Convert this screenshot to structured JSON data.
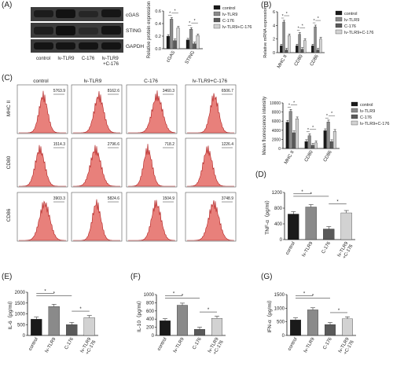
{
  "panels": {
    "A": "(A)",
    "B": "(B)",
    "C": "(C)",
    "D": "(D)",
    "E": "(E)",
    "F": "(F)",
    "G": "(G)"
  },
  "blot": {
    "rows": [
      "cGAS",
      "STING",
      "GAPDH"
    ],
    "lanes": [
      "control",
      "lv-TLR9",
      "C-176",
      "lv-TLR9\n+C-176"
    ]
  },
  "flow": {
    "columns": [
      "control",
      "lv-TLR9",
      "C-176",
      "lv-TLR9+C-176"
    ],
    "rows": [
      "MHC II",
      "CD80",
      "CD86"
    ],
    "values": [
      [
        "5763.9",
        "8162.6",
        "3460.3",
        "6506.7"
      ],
      [
        "1514.3",
        "2796.6",
        "718.2",
        "1226.4"
      ],
      [
        "3903.3",
        "5824.6",
        "1504.9",
        "3748.9"
      ]
    ]
  },
  "colors": {
    "control": "#1a1a1a",
    "lv-TLR9": "#8a8a8a",
    "C-176": "#5a5a5a",
    "combo": "#d2d2d2",
    "hist_fill": "#e8807b",
    "hist_line": "#b02020"
  },
  "chart_data": [
    {
      "type": "bar",
      "id": "A",
      "categories": [
        "cGAS",
        "STING"
      ],
      "series": [
        {
          "name": "control",
          "values": [
            0.2,
            0.14
          ]
        },
        {
          "name": "lv-TLR9",
          "values": [
            0.47,
            0.31
          ]
        },
        {
          "name": "C-176",
          "values": [
            0.13,
            0.08
          ]
        },
        {
          "name": "lv-TLR9+C-176",
          "values": [
            0.33,
            0.21
          ]
        }
      ],
      "ylabel": "Relative protein expression",
      "ylim": [
        0,
        0.6
      ],
      "yticks": [
        "0.0",
        "0.2",
        "0.4",
        "0.6"
      ],
      "legend": "right"
    },
    {
      "type": "bar",
      "id": "B",
      "categories": [
        "MHC II",
        "CD80",
        "CD86"
      ],
      "series": [
        {
          "name": "control",
          "values": [
            1,
            1,
            1
          ]
        },
        {
          "name": "lv-TLR9",
          "values": [
            4.5,
            2.7,
            3.8
          ]
        },
        {
          "name": "C-176",
          "values": [
            0.4,
            0.5,
            0.4
          ]
        },
        {
          "name": "lv-TLR9+C-176",
          "values": [
            2.5,
            1.8,
            2.0
          ]
        }
      ],
      "ylabel": "Relative mRNA expression",
      "ylim": [
        0,
        6
      ],
      "yticks": [
        "0",
        "2",
        "4",
        "6"
      ],
      "legend": "top-right"
    },
    {
      "type": "bar",
      "id": "C",
      "categories": [
        "MHC II",
        "CD80",
        "CD86"
      ],
      "series": [
        {
          "name": "control",
          "values": [
            5764,
            1514,
            3903
          ]
        },
        {
          "name": "lv-TLR9",
          "values": [
            8163,
            2797,
            5825
          ]
        },
        {
          "name": "C-176",
          "values": [
            3460,
            718,
            1505
          ]
        },
        {
          "name": "lv-TLR9+C-176",
          "values": [
            6507,
            1226,
            3749
          ]
        }
      ],
      "ylabel": "Mean fluorescence intensity",
      "ylim": [
        0,
        10000
      ],
      "yticks": [
        "0",
        "2000",
        "4000",
        "6000",
        "8000",
        "10000"
      ],
      "legend": "top-right"
    },
    {
      "type": "bar",
      "id": "D",
      "categories": [
        "control",
        "lv-TLR9",
        "C-176",
        "lv-TLR9\n+C-176"
      ],
      "values": [
        650,
        830,
        270,
        680
      ],
      "ylabel": "TNF-α（pg/ml）",
      "ylim": [
        0,
        1200
      ],
      "yticks": [
        "0",
        "400",
        "800",
        "1200"
      ]
    },
    {
      "type": "bar",
      "id": "E",
      "categories": [
        "control",
        "lv-TLR9",
        "C-176",
        "lv-TLR9\n+C-176"
      ],
      "values": [
        750,
        1340,
        500,
        820
      ],
      "ylabel": "IL-6（pg/ml）",
      "ylim": [
        0,
        2000
      ],
      "yticks": [
        "0",
        "500",
        "1000",
        "1500",
        "2000"
      ]
    },
    {
      "type": "bar",
      "id": "F",
      "categories": [
        "control",
        "lv-TLR9",
        "C-176",
        "lv-TLR9\n+C-176"
      ],
      "values": [
        360,
        740,
        150,
        420
      ],
      "ylabel": "IL-10（pg/ml）",
      "ylim": [
        0,
        1000
      ],
      "yticks": [
        "0",
        "200",
        "400",
        "600",
        "800",
        "1000"
      ]
    },
    {
      "type": "bar",
      "id": "G",
      "categories": [
        "control",
        "lv-TLR9",
        "C-176",
        "lv-TLR9\n+C-176"
      ],
      "values": [
        570,
        940,
        400,
        610
      ],
      "ylabel": "IFN-α（pg/ml）",
      "ylim": [
        0,
        1500
      ],
      "yticks": [
        "0",
        "500",
        "1000",
        "1500"
      ]
    }
  ]
}
